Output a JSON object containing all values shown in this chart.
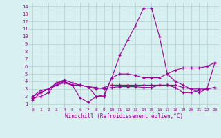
{
  "x": [
    0,
    1,
    2,
    3,
    4,
    5,
    6,
    7,
    8,
    9,
    10,
    11,
    12,
    13,
    14,
    15,
    16,
    17,
    18,
    19,
    20,
    21,
    22,
    23
  ],
  "line1": [
    1.5,
    2.5,
    3.0,
    3.5,
    4.0,
    3.5,
    1.8,
    1.2,
    2.0,
    2.0,
    4.5,
    7.5,
    9.5,
    11.5,
    13.8,
    13.8,
    10.0,
    5.0,
    4.0,
    3.5,
    3.0,
    2.5,
    3.0,
    6.5
  ],
  "line2": [
    2.0,
    2.5,
    3.0,
    3.5,
    3.8,
    3.5,
    3.5,
    3.3,
    2.0,
    2.2,
    4.5,
    5.0,
    5.0,
    4.8,
    4.5,
    4.5,
    4.5,
    5.0,
    5.5,
    5.8,
    5.8,
    5.8,
    6.0,
    6.5
  ],
  "line3": [
    2.0,
    2.8,
    3.0,
    3.8,
    4.0,
    3.5,
    3.5,
    3.3,
    3.0,
    3.2,
    3.5,
    3.5,
    3.5,
    3.5,
    3.5,
    3.5,
    3.5,
    3.5,
    3.2,
    2.5,
    2.5,
    2.8,
    3.0,
    3.2
  ],
  "line4": [
    1.8,
    2.0,
    2.5,
    3.8,
    4.2,
    3.8,
    3.5,
    3.3,
    3.2,
    3.0,
    3.2,
    3.3,
    3.3,
    3.3,
    3.2,
    3.2,
    3.5,
    3.5,
    3.5,
    3.2,
    3.0,
    3.0,
    3.0,
    3.2
  ],
  "line_color": "#990099",
  "bg_color": "#d8f0f0",
  "grid_color": "#b0d0d0",
  "xlabel": "Windchill (Refroidissement éolien,°C)",
  "xlim": [
    -0.5,
    23.5
  ],
  "ylim": [
    0.5,
    14.5
  ],
  "yticks": [
    1,
    2,
    3,
    4,
    5,
    6,
    7,
    8,
    9,
    10,
    11,
    12,
    13,
    14
  ],
  "xticks": [
    0,
    1,
    2,
    3,
    4,
    5,
    6,
    7,
    8,
    9,
    10,
    11,
    12,
    13,
    14,
    15,
    16,
    17,
    18,
    19,
    20,
    21,
    22,
    23
  ]
}
